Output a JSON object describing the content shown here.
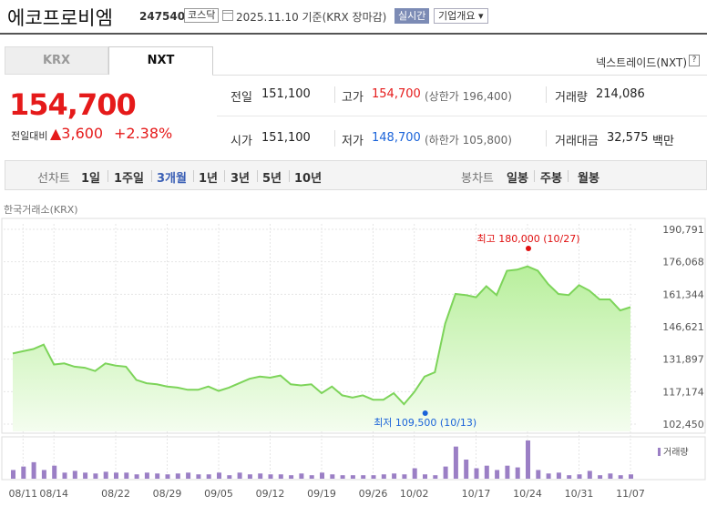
{
  "header": {
    "name": "에코프로비엠",
    "code": "247540",
    "market": "코스닥",
    "date": "2025.11.10 기준(KRX 장마감)",
    "realtime": "실시간",
    "overview": "기업개요 ▾"
  },
  "tabs": [
    {
      "label": "KRX"
    },
    {
      "label": "NXT"
    }
  ],
  "nxt_link": "넥스트레이드(NXT)",
  "nxt_icon": "?",
  "quote": {
    "price": "154,700",
    "change_label": "전일대비",
    "change_value": "▲3,600",
    "change_pct": "+2.38%"
  },
  "stats": {
    "prev_label": "전일",
    "prev": "151,100",
    "high_label": "고가",
    "high": "154,700",
    "upper_limit": "(상한가 196,400)",
    "volume_label": "거래량",
    "volume": "214,086",
    "open_label": "시가",
    "open": "151,100",
    "low_label": "저가",
    "low": "148,700",
    "lower_limit": "(하한가 105,800)",
    "amount_label": "거래대금",
    "amount": "32,575",
    "amount_unit": "백만"
  },
  "period": {
    "line_label": "선차트",
    "line": [
      "1일",
      "1주일",
      "3개월",
      "1년",
      "3년",
      "5년",
      "10년"
    ],
    "active": "3개월",
    "candle_label": "봉차트",
    "candle": [
      "일봉",
      "주봉",
      "월봉"
    ]
  },
  "chart_source": "한국거래소(KRX)",
  "chart_data": {
    "type": "area",
    "y_ticks": [
      "190,791",
      "176,068",
      "161,344",
      "146,621",
      "131,897",
      "117,174",
      "102,450"
    ],
    "ylim": [
      102450,
      190791
    ],
    "x_ticks": [
      "08/11",
      "08/14",
      "08/22",
      "08/29",
      "09/05",
      "09/12",
      "09/19",
      "09/26",
      "10/02",
      "10/17",
      "10/24",
      "10/31",
      "11/07"
    ],
    "x_tick_index": [
      1,
      4,
      10,
      15,
      20,
      25,
      30,
      35,
      39,
      45,
      50,
      55,
      60
    ],
    "series": [
      {
        "values": [
          134500,
          135500,
          136500,
          138500,
          129500,
          130000,
          128500,
          128000,
          126500,
          130000,
          129000,
          128500,
          122500,
          121000,
          120500,
          119500,
          119000,
          118000,
          118000,
          119500,
          117500,
          119000,
          121000,
          123000,
          124000,
          123500,
          124500,
          120500,
          120000,
          120500,
          116500,
          119500,
          115500,
          114500,
          115500,
          113500,
          113500,
          116500,
          111500,
          117000,
          124000,
          126000,
          148000,
          161500,
          161000,
          160000,
          165000,
          161000,
          172000,
          172500,
          174000,
          172000,
          166000,
          161500,
          161000,
          165500,
          163000,
          159000,
          159000,
          154000,
          155500
        ]
      }
    ],
    "volume": {
      "label": "거래량",
      "values": [
        10,
        14,
        19,
        10,
        15,
        7,
        9,
        7,
        6,
        8,
        7,
        7,
        5,
        7,
        6,
        5,
        6,
        7,
        5,
        5,
        7,
        4,
        7,
        5,
        6,
        5,
        5,
        4,
        6,
        4,
        7,
        5,
        4,
        4,
        4,
        4,
        5,
        6,
        5,
        12,
        5,
        4,
        14,
        37,
        22,
        12,
        15,
        10,
        15,
        13,
        44,
        10,
        6,
        7,
        4,
        5,
        9,
        4,
        6,
        4,
        5
      ]
    },
    "max_marker": {
      "label": "최고 180,000 (10/27)",
      "index": 50,
      "value": 180000
    },
    "min_marker": {
      "label": "최저 109,500 (10/13)",
      "index": 39,
      "value": 109500
    },
    "colors": {
      "line": "#7dd45a",
      "fill_top": "#b8ef9c",
      "fill_bottom": "#f4fdef",
      "volume": "#9b7fc5",
      "max": "#e01010",
      "min": "#1a63d9"
    }
  }
}
